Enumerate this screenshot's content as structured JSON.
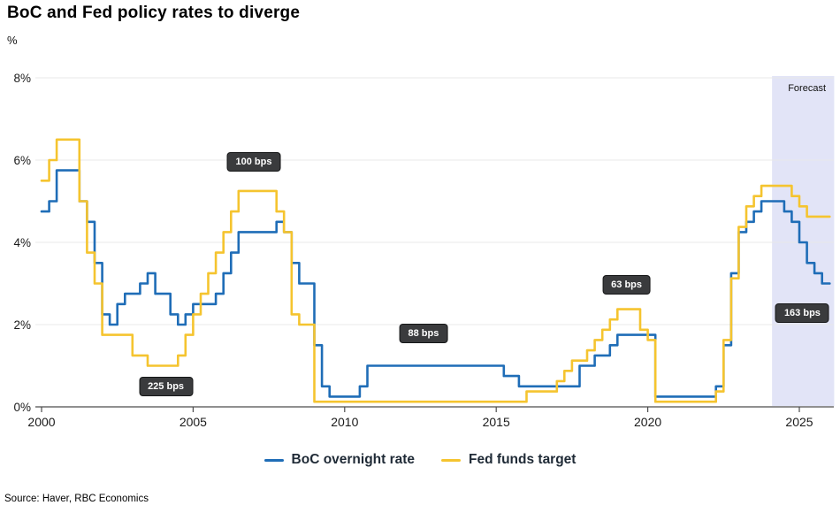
{
  "title": "BoC and Fed policy rates to diverge",
  "unit_label": "%",
  "source": "Source: Haver, RBC Economics",
  "chart_data": {
    "type": "line",
    "title": "BoC and Fed policy rates to diverge",
    "ylabel": "%",
    "ylim": [
      0,
      8
    ],
    "xlim": [
      2000,
      2026.15
    ],
    "grid": "horizontal",
    "legend_position": "bottom",
    "step_interpolation": true,
    "x_start": 2000.0,
    "x_step": 0.25,
    "x_ticks": [
      2000,
      2005,
      2010,
      2015,
      2020,
      2025
    ],
    "y_ticks": [
      0,
      2,
      4,
      6,
      8
    ],
    "y_tick_labels": [
      "0%",
      "2%",
      "4%",
      "6%",
      "8%"
    ],
    "forecast": {
      "label": "Forecast",
      "start": 2024.1,
      "end": 2026.15,
      "fill": "#e2e4f7"
    },
    "annotations": [
      {
        "label": "225 bps",
        "x": 2004.1,
        "y": 0.5
      },
      {
        "label": "100 bps",
        "x": 2007.0,
        "y": 5.95
      },
      {
        "label": "88 bps",
        "x": 2012.6,
        "y": 1.78
      },
      {
        "label": "63 bps",
        "x": 2019.3,
        "y": 2.97
      },
      {
        "label": "163 bps",
        "x": 2025.1,
        "y": 2.28
      }
    ],
    "series": [
      {
        "name": "BoC overnight rate",
        "color": "#1f6db7",
        "values": [
          4.75,
          5,
          5.75,
          5.75,
          5.75,
          5,
          4.5,
          3.5,
          2.25,
          2,
          2.5,
          2.75,
          2.75,
          3,
          3.25,
          2.75,
          2.75,
          2.25,
          2,
          2.25,
          2.5,
          2.5,
          2.5,
          2.75,
          3.25,
          3.75,
          4.25,
          4.25,
          4.25,
          4.25,
          4.25,
          4.5,
          4.25,
          3.5,
          3,
          3,
          1.5,
          0.5,
          0.25,
          0.25,
          0.25,
          0.25,
          0.5,
          1,
          1,
          1,
          1,
          1,
          1,
          1,
          1,
          1,
          1,
          1,
          1,
          1,
          1,
          1,
          1,
          1,
          1,
          0.75,
          0.75,
          0.5,
          0.5,
          0.5,
          0.5,
          0.5,
          0.5,
          0.5,
          0.5,
          1,
          1,
          1.25,
          1.25,
          1.5,
          1.75,
          1.75,
          1.75,
          1.75,
          1.75,
          0.25,
          0.25,
          0.25,
          0.25,
          0.25,
          0.25,
          0.25,
          0.25,
          0.5,
          1.5,
          3.25,
          4.25,
          4.5,
          4.75,
          5,
          5,
          5,
          4.75,
          4.5,
          4,
          3.5,
          3.25,
          3,
          3
        ]
      },
      {
        "name": "Fed funds target",
        "color": "#f5c42f",
        "values": [
          5.5,
          6,
          6.5,
          6.5,
          6.5,
          5,
          3.75,
          3,
          1.75,
          1.75,
          1.75,
          1.75,
          1.25,
          1.25,
          1,
          1,
          1,
          1,
          1.25,
          1.75,
          2.25,
          2.75,
          3.25,
          3.75,
          4.25,
          4.75,
          5.25,
          5.25,
          5.25,
          5.25,
          5.25,
          4.75,
          4.25,
          2.25,
          2,
          2,
          0.125,
          0.125,
          0.125,
          0.125,
          0.125,
          0.125,
          0.125,
          0.125,
          0.125,
          0.125,
          0.125,
          0.125,
          0.125,
          0.125,
          0.125,
          0.125,
          0.125,
          0.125,
          0.125,
          0.125,
          0.125,
          0.125,
          0.125,
          0.125,
          0.125,
          0.125,
          0.125,
          0.125,
          0.375,
          0.375,
          0.375,
          0.375,
          0.625,
          0.875,
          1.125,
          1.125,
          1.375,
          1.625,
          1.875,
          2.125,
          2.375,
          2.375,
          2.375,
          1.875,
          1.625,
          0.125,
          0.125,
          0.125,
          0.125,
          0.125,
          0.125,
          0.125,
          0.125,
          0.375,
          1.625,
          3.125,
          4.375,
          4.875,
          5.125,
          5.375,
          5.375,
          5.375,
          5.375,
          5.125,
          4.875,
          4.625,
          4.625,
          4.625,
          4.625
        ]
      }
    ]
  }
}
